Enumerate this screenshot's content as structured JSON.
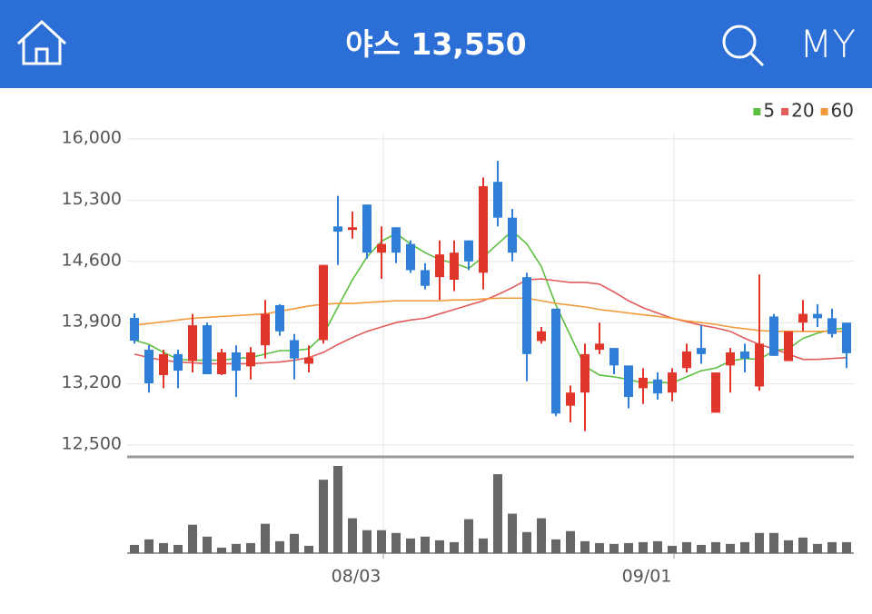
{
  "header": {
    "title": "야스 13,550",
    "right_label": "MY"
  },
  "chart_data": {
    "type": "candlestick",
    "categories": [
      null,
      null,
      null,
      null,
      null,
      null,
      null,
      null,
      null,
      null,
      null,
      null,
      null,
      null,
      null,
      null,
      null,
      "08/03",
      null,
      null,
      null,
      null,
      null,
      null,
      null,
      null,
      null,
      null,
      null,
      null,
      null,
      null,
      null,
      null,
      null,
      null,
      null,
      "09/01",
      null,
      null,
      null,
      null,
      null,
      null,
      null,
      null,
      null,
      null,
      null,
      null
    ],
    "open": [
      13954,
      13590,
      13300,
      13540,
      13460,
      13870,
      13310,
      13560,
      13400,
      13640,
      14100,
      13700,
      13430,
      13700,
      15000,
      14960,
      15250,
      14700,
      14990,
      14800,
      14500,
      14420,
      14390,
      14840,
      14470,
      15510,
      15100,
      14420,
      13690,
      14060,
      12950,
      13100,
      13590,
      13610,
      13410,
      13150,
      13250,
      13100,
      13380,
      13610,
      12870,
      13410,
      13570,
      13170,
      13970,
      13460,
      13900,
      14000,
      13950,
      13900
    ],
    "high": [
      14006,
      13642,
      13590,
      13590,
      14000,
      13900,
      13600,
      13640,
      13620,
      14160,
      14110,
      13770,
      13640,
      14560,
      15350,
      15170,
      15250,
      15000,
      14990,
      14840,
      14580,
      14840,
      14840,
      14840,
      15560,
      15750,
      15200,
      14470,
      13850,
      14060,
      13180,
      13660,
      13900,
      13610,
      13410,
      13380,
      13330,
      13380,
      13660,
      13870,
      13330,
      13610,
      13660,
      14450,
      14000,
      13800,
      14160,
      14110,
      14060,
      13900
    ],
    "low": [
      13660,
      13100,
      13150,
      13150,
      13330,
      13310,
      13300,
      13050,
      13250,
      13490,
      13750,
      13250,
      13330,
      13660,
      14560,
      14860,
      14630,
      14400,
      14580,
      14470,
      14280,
      14160,
      14260,
      14500,
      14280,
      15000,
      14600,
      13230,
      13660,
      12830,
      12760,
      12660,
      13540,
      13310,
      12920,
      12970,
      13020,
      13000,
      13330,
      13430,
      12870,
      13100,
      13330,
      13120,
      13520,
      13460,
      13800,
      13850,
      13730,
      13380
    ],
    "close": [
      13694,
      13206,
      13540,
      13350,
      13870,
      13310,
      13560,
      13350,
      13560,
      14000,
      13800,
      13490,
      13500,
      14560,
      14940,
      14990,
      14700,
      14800,
      14700,
      14500,
      14320,
      14680,
      14700,
      14600,
      15460,
      15100,
      14700,
      13540,
      13800,
      12860,
      13100,
      13540,
      13660,
      13410,
      13050,
      13270,
      13090,
      13330,
      13570,
      13540,
      13330,
      13560,
      13490,
      13660,
      13520,
      13800,
      14000,
      13950,
      13770,
      13550
    ],
    "volume": [
      9,
      15,
      11,
      9,
      31,
      18,
      6,
      10,
      11,
      32,
      13,
      21,
      8,
      80,
      95,
      38,
      25,
      25,
      22,
      16,
      18,
      14,
      12,
      37,
      16,
      86,
      43,
      23,
      38,
      15,
      24,
      13,
      11,
      10,
      11,
      12,
      13,
      8,
      12,
      9,
      12,
      10,
      12,
      22,
      22,
      14,
      17,
      10,
      12,
      12
    ],
    "up_color": "#e0352b",
    "down_color": "#2f7fd8",
    "volume_color": "#666666",
    "moving_averages": [
      {
        "name": "5",
        "color": "#5cbf3f",
        "values": [
          13700,
          13650,
          13560,
          13480,
          13470,
          13470,
          13470,
          13490,
          13500,
          13540,
          13580,
          13580,
          13600,
          13760,
          14080,
          14390,
          14650,
          14830,
          14920,
          14800,
          14700,
          14620,
          14580,
          14520,
          14650,
          14800,
          14950,
          14800,
          14540,
          14100,
          13750,
          13400,
          13300,
          13280,
          13250,
          13210,
          13220,
          13210,
          13280,
          13350,
          13380,
          13460,
          13490,
          13480,
          13580,
          13600,
          13720,
          13780,
          13820,
          13840
        ]
      },
      {
        "name": "20",
        "color": "#e35b5b",
        "values": [
          13540,
          13500,
          13470,
          13450,
          13440,
          13430,
          13430,
          13430,
          13430,
          13440,
          13450,
          13470,
          13500,
          13560,
          13650,
          13730,
          13800,
          13850,
          13900,
          13930,
          13950,
          14000,
          14050,
          14100,
          14150,
          14220,
          14300,
          14390,
          14400,
          14380,
          14360,
          14360,
          14340,
          14250,
          14150,
          14070,
          14010,
          13950,
          13910,
          13870,
          13840,
          13800,
          13720,
          13650,
          13600,
          13540,
          13480,
          13480,
          13490,
          13500
        ]
      },
      {
        "name": "60",
        "color": "#f29a3a",
        "values": [
          13870,
          13890,
          13910,
          13930,
          13950,
          13960,
          13970,
          13980,
          13990,
          14000,
          14030,
          14060,
          14090,
          14110,
          14120,
          14120,
          14130,
          14140,
          14150,
          14150,
          14150,
          14150,
          14160,
          14160,
          14170,
          14180,
          14180,
          14180,
          14150,
          14120,
          14100,
          14080,
          14050,
          14030,
          14010,
          13990,
          13970,
          13950,
          13920,
          13900,
          13880,
          13850,
          13830,
          13810,
          13800,
          13800,
          13800,
          13800,
          13800,
          13800
        ]
      }
    ],
    "ylim": [
      12500,
      16000
    ],
    "yticks": [
      {
        "value": 12500,
        "label": "12,500"
      },
      {
        "value": 13200,
        "label": "13,200"
      },
      {
        "value": 13900,
        "label": "13,900"
      },
      {
        "value": 14600,
        "label": "14,600"
      },
      {
        "value": 15300,
        "label": "15,300"
      },
      {
        "value": 16000,
        "label": "16,000"
      }
    ],
    "grid": true
  }
}
